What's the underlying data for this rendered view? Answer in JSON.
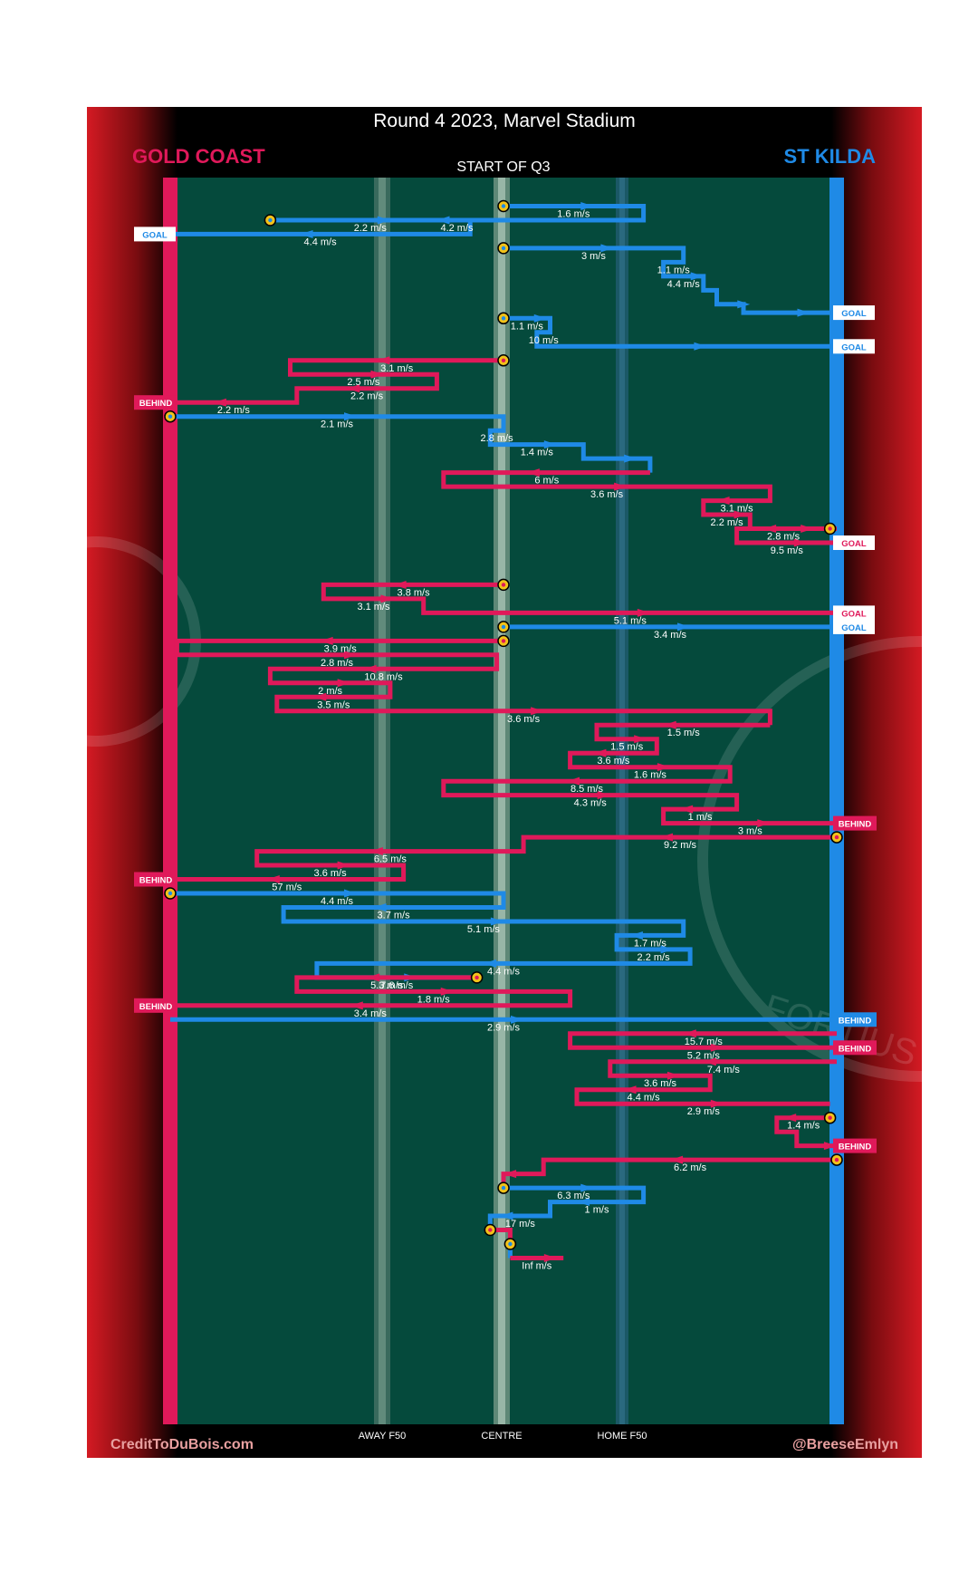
{
  "title": "Round 4 2023, Marvel Stadium",
  "period_label": "START OF Q3",
  "teams": {
    "left": {
      "name": "GOLD COAST",
      "color": "#e0195a"
    },
    "right": {
      "name": "ST KILDA",
      "color": "#1f8ae6"
    }
  },
  "colors": {
    "field": "#054a3c",
    "frame_red": "#d8152b",
    "gold": "#f2c21a",
    "lane": "#7a9c8e"
  },
  "credits": {
    "left": "CreditToDuBois.com",
    "right": "@BreeseEmlyn"
  },
  "watermark_text": "FORTIUS QUO",
  "chart_data": {
    "type": "line",
    "title": "Round 4 2023, Marvel Stadium",
    "xlabel": "",
    "ylabel": "",
    "xlim": [
      0,
      100
    ],
    "x_axis_labels": [
      {
        "label": "AWAY F50",
        "x": 31
      },
      {
        "label": "CENTRE",
        "x": 50
      },
      {
        "label": "HOME F50",
        "x": 68
      }
    ],
    "legend": [
      {
        "team": "GOLD COAST",
        "side": "left"
      },
      {
        "team": "ST KILDA",
        "side": "right"
      }
    ],
    "outcome_labels": {
      "GOAL": "GOAL",
      "BEHIND": "BEHIND"
    },
    "chains": [
      {
        "team": "STK",
        "x": [
          50,
          71,
          71,
          15
        ],
        "y": [
          1,
          1,
          2,
          2
        ],
        "speeds": [
          "1.6 m/s",
          "4.2 m/s"
        ],
        "start_marker": true
      },
      {
        "team": "STK",
        "x": [
          15,
          45,
          45,
          0
        ],
        "y": [
          2,
          2,
          3,
          3
        ],
        "speeds": [
          "2.2 m/s",
          "4.4 m/s"
        ],
        "start_marker": true,
        "outcome": "GOAL",
        "outcome_side": "left"
      },
      {
        "team": "STK",
        "x": [
          50,
          77,
          77,
          74,
          74,
          80,
          80,
          82,
          82,
          86,
          86,
          100
        ],
        "y": [
          4,
          4,
          5,
          5,
          6,
          6,
          7,
          7,
          8,
          8,
          8.6,
          8.6
        ],
        "speeds": [
          "3 m/s",
          "1.1 m/s",
          "4.4 m/s"
        ],
        "start_marker": true,
        "outcome": "GOAL",
        "outcome_side": "right"
      },
      {
        "team": "STK",
        "x": [
          50,
          57,
          57,
          55,
          55,
          100
        ],
        "y": [
          9,
          9,
          10,
          10,
          11,
          11
        ],
        "speeds": [
          "1.1 m/s",
          "10 m/s"
        ],
        "start_marker": true,
        "outcome": "GOAL",
        "outcome_side": "right"
      },
      {
        "team": "GC",
        "x": [
          50,
          18,
          18,
          40,
          40,
          19,
          19,
          0
        ],
        "y": [
          12,
          12,
          13,
          13,
          14,
          14,
          15,
          15
        ],
        "speeds": [
          "3.1 m/s",
          "2.5 m/s",
          "2.2 m/s",
          "2.2 m/s"
        ],
        "start_marker": true,
        "outcome": "BEHIND",
        "outcome_side": "left"
      },
      {
        "team": "STK",
        "x": [
          0,
          50,
          50,
          48,
          48,
          62,
          62,
          72,
          72
        ],
        "y": [
          16,
          16,
          17,
          17,
          18,
          18,
          19,
          19,
          20
        ],
        "speeds": [
          "2.1 m/s",
          "2.8 m/s",
          "1.4 m/s"
        ],
        "start_marker": true
      },
      {
        "team": "GC",
        "x": [
          72,
          41,
          41,
          90,
          90,
          80,
          80,
          87,
          87,
          100
        ],
        "y": [
          20,
          20,
          21,
          21,
          22,
          22,
          23,
          23,
          24,
          24
        ],
        "speeds": [
          "6 m/s",
          "3.6 m/s",
          "3.1 m/s",
          "2.2 m/s"
        ],
        "start_marker": false
      },
      {
        "team": "GC",
        "x": [
          99,
          85,
          85,
          100
        ],
        "y": [
          24,
          24,
          25,
          25
        ],
        "speeds": [
          "2.8 m/s",
          "9.5 m/s"
        ],
        "start_marker": true,
        "outcome": "GOAL",
        "outcome_side": "right"
      },
      {
        "team": "GC",
        "x": [
          50,
          23,
          23,
          38,
          38,
          100
        ],
        "y": [
          28,
          28,
          29,
          29,
          30,
          30
        ],
        "speeds": [
          "3.8 m/s",
          "3.1 m/s",
          "5.1 m/s"
        ],
        "start_marker": true,
        "outcome": "GOAL",
        "outcome_side": "right"
      },
      {
        "team": "STK",
        "x": [
          50,
          100
        ],
        "y": [
          31,
          31
        ],
        "speeds": [
          "3.4 m/s"
        ],
        "start_marker": true,
        "outcome": "GOAL",
        "outcome_side": "right"
      },
      {
        "team": "GC",
        "x": [
          50,
          1,
          1,
          49,
          49,
          15,
          15,
          33,
          33,
          16,
          16,
          90,
          90
        ],
        "y": [
          32,
          32,
          33,
          33,
          34,
          34,
          35,
          35,
          36,
          36,
          37,
          37,
          38
        ],
        "speeds": [
          "3.9 m/s",
          "2.8 m/s",
          "10.8 m/s",
          "2 m/s",
          "3.5 m/s",
          "3.6 m/s"
        ],
        "start_marker": true
      },
      {
        "team": "GC",
        "x": [
          90,
          64,
          64,
          73,
          73,
          60,
          60,
          84,
          84,
          41,
          41,
          85,
          85,
          74,
          74,
          100
        ],
        "y": [
          38,
          38,
          39,
          39,
          40,
          40,
          41,
          41,
          42,
          42,
          43,
          43,
          44,
          44,
          45,
          45
        ],
        "speeds": [
          "1.5 m/s",
          "1.5 m/s",
          "3.6 m/s",
          "1.6 m/s",
          "8.5 m/s",
          "4.3 m/s",
          "1 m/s",
          "3 m/s"
        ],
        "start_marker": false,
        "outcome": "BEHIND",
        "outcome_side": "right"
      },
      {
        "team": "GC",
        "x": [
          100,
          53,
          53,
          13,
          13,
          35,
          35,
          0
        ],
        "y": [
          46,
          46,
          47,
          47,
          48,
          48,
          49,
          49
        ],
        "speeds": [
          "9.2 m/s",
          "6.5 m/s",
          "3.6 m/s",
          "57 m/s"
        ],
        "start_marker": true,
        "outcome": "BEHIND",
        "outcome_side": "left"
      },
      {
        "team": "STK",
        "x": [
          0,
          50,
          50,
          17,
          17,
          77,
          77,
          67,
          67,
          78,
          78,
          22,
          22,
          46
        ],
        "y": [
          50,
          50,
          51,
          51,
          52,
          52,
          53,
          53,
          54,
          54,
          55,
          55,
          56,
          56
        ],
        "speeds": [
          "4.4 m/s",
          "3.7 m/s",
          "5.1 m/s",
          "1.7 m/s",
          "2.2 m/s",
          "4.4 m/s",
          "7.6 m/s"
        ],
        "start_marker": true
      },
      {
        "team": "GC",
        "x": [
          46,
          19,
          19,
          60,
          60,
          0
        ],
        "y": [
          56,
          56,
          57,
          57,
          58,
          58
        ],
        "speeds": [
          "5.3 m/s",
          "1.8 m/s",
          "3.4 m/s"
        ],
        "start_marker": true,
        "outcome": "BEHIND",
        "outcome_side": "left"
      },
      {
        "team": "STK",
        "x": [
          0,
          100
        ],
        "y": [
          59,
          59
        ],
        "speeds": [
          "2.9 m/s"
        ],
        "start_marker": false,
        "outcome": "BEHIND",
        "outcome_side": "right"
      },
      {
        "team": "GC",
        "x": [
          100,
          60,
          60,
          100
        ],
        "y": [
          60,
          60,
          61,
          61
        ],
        "speeds": [
          "15.7 m/s",
          "5.2 m/s"
        ],
        "start_marker": false,
        "outcome": "BEHIND",
        "outcome_side": "right"
      },
      {
        "team": "GC",
        "x": [
          100,
          66,
          66,
          81,
          81,
          61,
          61,
          99
        ],
        "y": [
          62,
          62,
          63,
          63,
          64,
          64,
          65,
          65
        ],
        "speeds": [
          "7.4 m/s",
          "3.6 m/s",
          "4.4 m/s",
          "2.9 m/s"
        ],
        "start_marker": false
      },
      {
        "team": "GC",
        "x": [
          99,
          91,
          91,
          94,
          94,
          100
        ],
        "y": [
          66,
          66,
          67,
          67,
          68,
          68
        ],
        "speeds": [
          "1.4 m/s"
        ],
        "start_marker": true,
        "outcome": "BEHIND",
        "outcome_side": "right"
      },
      {
        "team": "GC",
        "x": [
          100,
          56,
          56,
          50,
          50
        ],
        "y": [
          69,
          69,
          70,
          70,
          71
        ],
        "speeds": [
          "6.2 m/s"
        ],
        "start_marker": true
      },
      {
        "team": "STK",
        "x": [
          50,
          71,
          71,
          57,
          57,
          48,
          48
        ],
        "y": [
          71,
          71,
          72,
          72,
          73,
          73,
          74
        ],
        "speeds": [
          "6.3 m/s",
          "1 m/s",
          "17 m/s"
        ],
        "start_marker": true
      },
      {
        "team": "GC",
        "x": [
          48,
          51,
          51
        ],
        "y": [
          74,
          74,
          75
        ],
        "speeds": [],
        "start_marker": true
      },
      {
        "team": "STK",
        "x": [
          51,
          51
        ],
        "y": [
          75,
          76
        ],
        "speeds": [],
        "start_marker": true
      },
      {
        "team": "GC",
        "x": [
          51,
          59
        ],
        "y": [
          76,
          76
        ],
        "speeds": [
          "Inf m/s"
        ],
        "start_marker": false
      }
    ]
  }
}
